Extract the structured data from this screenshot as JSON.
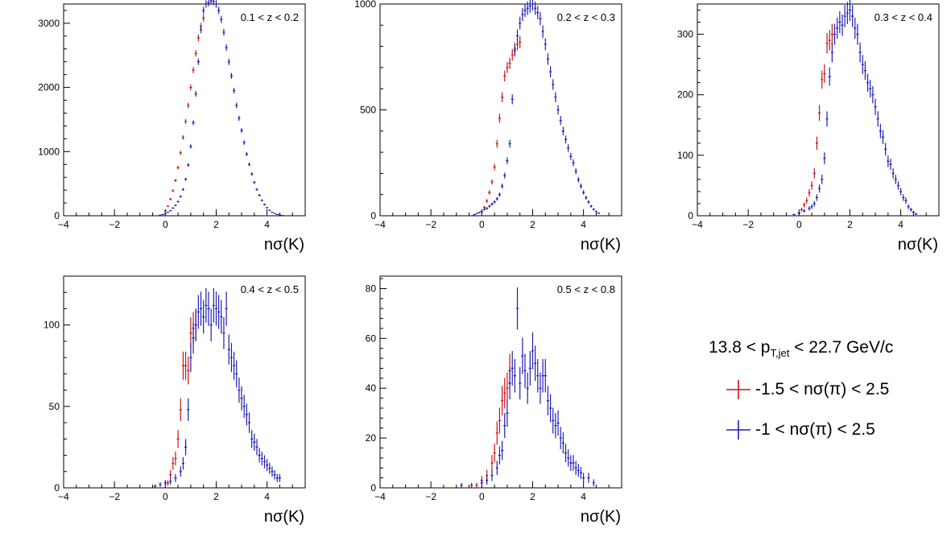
{
  "colors": {
    "red": "#c81414",
    "blue": "#1e1eb4"
  },
  "legend": {
    "title_main": "13.8 < p",
    "title_sub": "T,jet",
    "title_end": " < 22.7 GeV/c",
    "entries": [
      {
        "label": "-1.5 < nσ(π) < 2.5",
        "color": "red"
      },
      {
        "label": "-1 < nσ(π) < 2.5",
        "color": "blue"
      }
    ]
  },
  "chart_data": [
    {
      "type": "scatter",
      "title": "0.1 < z < 0.2",
      "xlabel": "nσ(K)",
      "xlim": [
        -4,
        5.5
      ],
      "ylim": [
        0,
        3300
      ],
      "xticks": [
        -4,
        -2,
        0,
        2,
        4
      ],
      "yticks": [
        0,
        1000,
        2000,
        3000
      ],
      "series": [
        {
          "name": "-1.5 < nσ(π) < 2.5",
          "color": "red",
          "x": [
            0.0,
            0.1,
            0.2,
            0.3,
            0.4,
            0.5,
            0.6,
            0.7,
            0.8,
            0.9,
            1.0,
            1.1,
            1.2,
            1.3,
            1.4,
            1.5
          ],
          "y": [
            80,
            150,
            260,
            390,
            550,
            750,
            980,
            1220,
            1470,
            1720,
            2000,
            2270,
            2530,
            2770,
            2950,
            3080
          ]
        },
        {
          "name": "-1 < nσ(π) < 2.5",
          "color": "blue",
          "x": [
            -0.2,
            -0.1,
            0.0,
            0.1,
            0.2,
            0.3,
            0.4,
            0.5,
            0.6,
            0.7,
            0.8,
            0.9,
            1.0,
            1.1,
            1.2,
            1.3,
            1.4,
            1.5,
            1.6,
            1.7,
            1.8,
            1.9,
            2.0,
            2.1,
            2.2,
            2.3,
            2.4,
            2.5,
            2.6,
            2.7,
            2.8,
            2.9,
            3.0,
            3.1,
            3.2,
            3.3,
            3.4,
            3.5,
            3.6,
            3.7,
            3.8,
            3.9,
            4.0,
            4.1,
            4.2,
            4.3,
            4.4,
            4.5,
            4.6
          ],
          "y": [
            10,
            20,
            35,
            55,
            80,
            120,
            160,
            220,
            300,
            410,
            570,
            790,
            1080,
            1450,
            1900,
            2400,
            2900,
            3200,
            3300,
            3320,
            3350,
            3340,
            3300,
            3200,
            3060,
            2860,
            2620,
            2400,
            2180,
            1950,
            1720,
            1520,
            1330,
            1140,
            960,
            800,
            650,
            520,
            410,
            320,
            240,
            175,
            125,
            85,
            55,
            35,
            20,
            12,
            6
          ]
        }
      ]
    },
    {
      "type": "scatter",
      "title": "0.2 < z < 0.3",
      "xlabel": "nσ(K)",
      "xlim": [
        -4,
        5.5
      ],
      "ylim": [
        0,
        1000
      ],
      "xticks": [
        -4,
        -2,
        0,
        2,
        4
      ],
      "yticks": [
        0,
        500,
        1000
      ],
      "series": [
        {
          "name": "-1.5 < nσ(π) < 2.5",
          "color": "red",
          "x": [
            0.0,
            0.1,
            0.2,
            0.3,
            0.4,
            0.5,
            0.6,
            0.7,
            0.8,
            0.9,
            1.0,
            1.1,
            1.2,
            1.3,
            1.4,
            1.5
          ],
          "y": [
            20,
            40,
            70,
            110,
            160,
            230,
            340,
            460,
            560,
            660,
            700,
            720,
            760,
            790,
            810,
            820
          ]
        },
        {
          "name": "-1 < nσ(π) < 2.5",
          "color": "blue",
          "x": [
            -0.3,
            -0.2,
            -0.1,
            0.0,
            0.1,
            0.2,
            0.3,
            0.4,
            0.5,
            0.6,
            0.7,
            0.8,
            0.9,
            1.0,
            1.1,
            1.2,
            1.3,
            1.4,
            1.5,
            1.6,
            1.7,
            1.8,
            1.9,
            2.0,
            2.1,
            2.2,
            2.3,
            2.4,
            2.5,
            2.6,
            2.7,
            2.8,
            2.9,
            3.0,
            3.1,
            3.2,
            3.3,
            3.4,
            3.5,
            3.6,
            3.7,
            3.8,
            3.9,
            4.0,
            4.1,
            4.2,
            4.3,
            4.4,
            4.5,
            4.6
          ],
          "y": [
            5,
            10,
            15,
            20,
            30,
            35,
            45,
            55,
            65,
            80,
            100,
            140,
            190,
            260,
            340,
            550,
            780,
            850,
            910,
            950,
            970,
            980,
            990,
            1000,
            980,
            960,
            930,
            870,
            810,
            740,
            680,
            620,
            560,
            500,
            450,
            400,
            360,
            320,
            280,
            250,
            210,
            170,
            140,
            110,
            85,
            65,
            45,
            30,
            20,
            12
          ]
        }
      ]
    },
    {
      "type": "scatter",
      "title": "0.3 < z < 0.4",
      "xlabel": "nσ(K)",
      "xlim": [
        -4,
        5.5
      ],
      "ylim": [
        0,
        350
      ],
      "xticks": [
        -4,
        -2,
        0,
        2,
        4
      ],
      "yticks": [
        0,
        100,
        200,
        300
      ],
      "series": [
        {
          "name": "-1.5 < nσ(π) < 2.5",
          "color": "red",
          "x": [
            0.0,
            0.1,
            0.2,
            0.3,
            0.4,
            0.5,
            0.6,
            0.7,
            0.8,
            0.9,
            1.0,
            1.1,
            1.2,
            1.3
          ],
          "y": [
            5,
            10,
            18,
            25,
            38,
            50,
            70,
            120,
            170,
            225,
            235,
            285,
            290,
            300
          ]
        },
        {
          "name": "-1 < nσ(π) < 2.5",
          "color": "blue",
          "x": [
            -0.2,
            0.0,
            0.2,
            0.4,
            0.5,
            0.6,
            0.7,
            0.8,
            0.9,
            1.0,
            1.1,
            1.2,
            1.3,
            1.4,
            1.5,
            1.6,
            1.7,
            1.8,
            1.9,
            2.0,
            2.1,
            2.2,
            2.3,
            2.4,
            2.5,
            2.6,
            2.7,
            2.8,
            2.9,
            3.0,
            3.1,
            3.2,
            3.3,
            3.4,
            3.5,
            3.6,
            3.7,
            3.8,
            3.9,
            4.0,
            4.1,
            4.2,
            4.3,
            4.4,
            4.5,
            4.6
          ],
          "y": [
            2,
            4,
            8,
            12,
            15,
            20,
            30,
            45,
            60,
            95,
            160,
            230,
            270,
            300,
            310,
            320,
            315,
            330,
            335,
            340,
            330,
            310,
            300,
            270,
            250,
            240,
            220,
            210,
            200,
            180,
            160,
            140,
            130,
            110,
            90,
            85,
            70,
            60,
            50,
            40,
            30,
            25,
            15,
            10,
            6,
            3
          ]
        }
      ]
    },
    {
      "type": "scatter",
      "title": "0.4 < z < 0.5",
      "xlabel": "nσ(K)",
      "xlim": [
        -4,
        5.5
      ],
      "ylim": [
        0,
        130
      ],
      "xticks": [
        -4,
        -2,
        0,
        2,
        4
      ],
      "yticks": [
        0,
        50,
        100
      ],
      "series": [
        {
          "name": "-1.5 < nσ(π) < 2.5",
          "color": "red",
          "x": [
            0.1,
            0.2,
            0.3,
            0.4,
            0.5,
            0.6,
            0.7,
            0.8,
            0.9,
            1.0,
            1.1,
            1.2
          ],
          "y": [
            3,
            8,
            15,
            18,
            30,
            48,
            75,
            75,
            72,
            95,
            98,
            100
          ]
        },
        {
          "name": "-1 < nσ(π) < 2.5",
          "color": "blue",
          "x": [
            -0.4,
            -0.2,
            0.0,
            0.2,
            0.4,
            0.6,
            0.7,
            0.8,
            0.9,
            1.0,
            1.1,
            1.2,
            1.3,
            1.4,
            1.5,
            1.6,
            1.7,
            1.8,
            1.9,
            2.0,
            2.1,
            2.2,
            2.3,
            2.4,
            2.5,
            2.6,
            2.7,
            2.8,
            2.9,
            3.0,
            3.1,
            3.2,
            3.3,
            3.4,
            3.5,
            3.6,
            3.7,
            3.8,
            3.9,
            4.0,
            4.1,
            4.2,
            4.3,
            4.4,
            4.5
          ],
          "y": [
            1,
            2,
            3,
            4,
            6,
            10,
            15,
            25,
            48,
            80,
            92,
            100,
            108,
            110,
            105,
            112,
            110,
            100,
            112,
            110,
            108,
            105,
            95,
            110,
            85,
            80,
            75,
            70,
            60,
            55,
            50,
            45,
            40,
            30,
            28,
            25,
            20,
            18,
            16,
            14,
            12,
            10,
            8,
            6,
            6
          ]
        }
      ]
    },
    {
      "type": "scatter",
      "title": "0.5 < z < 0.8",
      "xlabel": "nσ(K)",
      "xlim": [
        -4,
        5.5
      ],
      "ylim": [
        0,
        85
      ],
      "xticks": [
        -4,
        -2,
        0,
        2,
        4
      ],
      "yticks": [
        0,
        20,
        40,
        60,
        80
      ],
      "series": [
        {
          "name": "-1.5 < nσ(π) < 2.5",
          "color": "red",
          "x": [
            -0.2,
            0.0,
            0.2,
            0.4,
            0.5,
            0.6,
            0.7,
            0.8,
            0.9,
            1.0,
            1.1
          ],
          "y": [
            1,
            3,
            5,
            10,
            14,
            22,
            27,
            35,
            38,
            40,
            47
          ]
        },
        {
          "name": "-1 < nσ(π) < 2.5",
          "color": "blue",
          "x": [
            -0.8,
            -0.4,
            0.0,
            0.2,
            0.4,
            0.6,
            0.7,
            0.8,
            0.9,
            1.0,
            1.1,
            1.2,
            1.3,
            1.4,
            1.5,
            1.6,
            1.7,
            1.8,
            1.9,
            2.0,
            2.1,
            2.2,
            2.3,
            2.4,
            2.5,
            2.6,
            2.7,
            2.8,
            2.9,
            3.0,
            3.1,
            3.2,
            3.3,
            3.4,
            3.5,
            3.6,
            3.7,
            3.8,
            3.9,
            4.0,
            4.2,
            4.4
          ],
          "y": [
            1,
            1,
            2,
            3,
            5,
            8,
            13,
            15,
            25,
            30,
            42,
            48,
            45,
            72,
            42,
            53,
            47,
            40,
            48,
            55,
            50,
            45,
            40,
            45,
            45,
            35,
            32,
            27,
            25,
            26,
            20,
            18,
            14,
            12,
            10,
            10,
            8,
            7,
            6,
            4,
            4,
            2
          ]
        }
      ]
    }
  ]
}
